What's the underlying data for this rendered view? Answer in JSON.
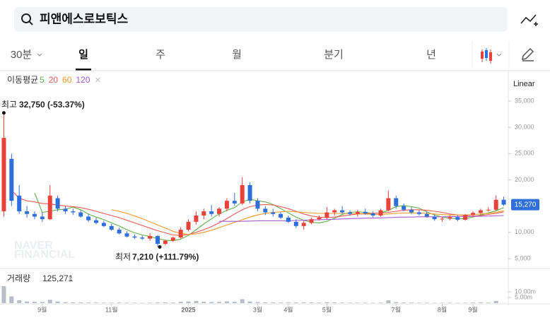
{
  "search": {
    "query": "피앤에스로보틱스"
  },
  "tabs": [
    "30분",
    "일",
    "주",
    "월",
    "분기",
    "년"
  ],
  "active_tab_index": 1,
  "chart_data": {
    "type": "candlestick",
    "scale_label": "Linear",
    "ma_title": "이동평균",
    "up_color": "#e8433a",
    "down_color": "#2f6fdc",
    "categories": [
      null,
      null,
      null,
      null,
      null,
      "9월",
      null,
      null,
      null,
      null,
      null,
      null,
      null,
      null,
      "11월",
      null,
      null,
      null,
      null,
      null,
      null,
      null,
      null,
      null,
      "2025",
      null,
      null,
      null,
      null,
      null,
      null,
      null,
      null,
      "3월",
      null,
      null,
      null,
      "4월",
      null,
      null,
      null,
      null,
      "5월",
      null,
      null,
      null,
      null,
      null,
      null,
      null,
      null,
      "7월",
      null,
      null,
      null,
      null,
      null,
      "8월",
      null,
      null,
      null,
      "9월",
      null,
      null,
      null,
      null
    ],
    "open": [
      14000,
      24000,
      17000,
      14000,
      13500,
      13000,
      12500,
      16500,
      14500,
      14000,
      13800,
      13000,
      12300,
      11800,
      11200,
      10500,
      9800,
      9200,
      9000,
      8800,
      9300,
      7800,
      8400,
      9000,
      10500,
      12000,
      13200,
      14000,
      13500,
      14500,
      16000,
      15500,
      19000,
      16000,
      14500,
      13800,
      13500,
      12800,
      12000,
      11200,
      11800,
      12500,
      12800,
      13800,
      14200,
      13800,
      13500,
      13900,
      13600,
      13200,
      14200,
      16500,
      15000,
      14300,
      13800,
      13500,
      13000,
      12500,
      12600,
      12900,
      12400,
      13300,
      13700,
      14200,
      14300,
      16200
    ],
    "high": [
      32750,
      25000,
      19000,
      15000,
      14000,
      13800,
      19000,
      17000,
      15000,
      14500,
      14200,
      13500,
      12800,
      12200,
      11600,
      10900,
      10200,
      9600,
      9400,
      9800,
      9500,
      8600,
      9200,
      11000,
      12500,
      14000,
      14500,
      15200,
      14800,
      16500,
      17500,
      20500,
      19500,
      16500,
      15000,
      14500,
      13800,
      13200,
      12500,
      12200,
      12800,
      13200,
      14800,
      14500,
      15000,
      14200,
      14300,
      14500,
      14000,
      14500,
      18000,
      17000,
      15500,
      14800,
      14200,
      14000,
      13400,
      13000,
      13200,
      13300,
      13500,
      14000,
      14500,
      14800,
      17000,
      16800
    ],
    "low": [
      13000,
      15000,
      13500,
      12800,
      12500,
      12000,
      12300,
      14000,
      13500,
      13300,
      12800,
      12000,
      11500,
      11000,
      10300,
      9600,
      9000,
      8700,
      8600,
      8400,
      7210,
      7500,
      8200,
      8800,
      10200,
      11500,
      12500,
      13000,
      13000,
      14000,
      15000,
      15200,
      15500,
      14000,
      13300,
      13000,
      12500,
      11800,
      10800,
      10500,
      11500,
      12200,
      12500,
      13200,
      13500,
      13200,
      13000,
      13300,
      12800,
      13000,
      14000,
      14500,
      14000,
      13500,
      13200,
      12800,
      12200,
      12000,
      12300,
      12100,
      12200,
      13000,
      13400,
      13900,
      14000,
      15000
    ],
    "close": [
      28000,
      16000,
      14000,
      13500,
      13000,
      12500,
      17000,
      14500,
      14000,
      13800,
      13000,
      12300,
      11800,
      11200,
      10500,
      9800,
      9200,
      9000,
      8800,
      9300,
      7800,
      8400,
      9000,
      10500,
      12000,
      13200,
      14000,
      13500,
      14500,
      16000,
      15500,
      19000,
      16000,
      14500,
      13800,
      13500,
      12800,
      12000,
      11200,
      11800,
      12500,
      12800,
      13800,
      14200,
      13800,
      13500,
      13900,
      13600,
      13200,
      14200,
      16500,
      15000,
      14300,
      13800,
      13500,
      13000,
      12500,
      12600,
      12900,
      12400,
      13300,
      13700,
      14200,
      14300,
      16200,
      15270
    ],
    "moving_averages": [
      {
        "name": "5",
        "color": "#5fb24a",
        "values": [
          null,
          null,
          null,
          null,
          17500,
          13800,
          14000,
          14300,
          14400,
          14800,
          14300,
          13500,
          12900,
          12400,
          11800,
          11200,
          10500,
          9900,
          9500,
          9200,
          8800,
          8500,
          8400,
          8700,
          9400,
          10500,
          11600,
          12600,
          13500,
          14200,
          14700,
          15800,
          16300,
          16000,
          15800,
          15300,
          14500,
          13700,
          12900,
          12300,
          11900,
          11800,
          12100,
          12700,
          13400,
          13800,
          13900,
          13800,
          13600,
          13700,
          14200,
          14900,
          15100,
          14900,
          14600,
          13900,
          13300,
          12900,
          12700,
          12600,
          12600,
          12900,
          13300,
          13700,
          14100,
          14700
        ]
      },
      {
        "name": "20",
        "color": "#ef5a52",
        "values": [
          null,
          18000,
          16500,
          16000,
          15800,
          15500,
          15400,
          15200,
          15000,
          14900,
          14700,
          14400,
          14000,
          13600,
          13200,
          12800,
          12300,
          11800,
          11300,
          10800,
          10300,
          9900,
          9500,
          9400,
          9600,
          10000,
          10500,
          11100,
          11800,
          12600,
          13500,
          14300,
          14900,
          15200,
          15300,
          15200,
          14900,
          14500,
          14000,
          13500,
          13100,
          12900,
          12800,
          12900,
          13100,
          13300,
          13500,
          13600,
          13600,
          13700,
          13800,
          14000,
          14200,
          14300,
          14300,
          14200,
          14000,
          13800,
          13500,
          13300,
          13200,
          13100,
          13200,
          13400,
          13600,
          13900
        ]
      },
      {
        "name": "60",
        "color": "#f39a2b",
        "values": [
          null,
          null,
          null,
          null,
          null,
          null,
          null,
          null,
          null,
          null,
          null,
          null,
          null,
          null,
          14300,
          14000,
          13600,
          13100,
          12600,
          12000,
          11400,
          10800,
          10200,
          9800,
          9600,
          9700,
          10000,
          10400,
          10900,
          11400,
          11900,
          12400,
          12900,
          13300,
          13600,
          13800,
          13900,
          14000,
          13900,
          13800,
          13700,
          13600,
          13600,
          13600,
          13600,
          13600,
          13500,
          13500,
          13400,
          13400,
          13500,
          13600,
          13700,
          13700,
          13700,
          13600,
          13500,
          13400,
          13300,
          13300,
          13300,
          13400,
          13500,
          13600,
          13800,
          14100
        ]
      },
      {
        "name": "120",
        "color": "#a65ed0",
        "values": [
          null,
          null,
          null,
          null,
          null,
          null,
          null,
          null,
          null,
          null,
          null,
          null,
          null,
          null,
          null,
          null,
          null,
          null,
          null,
          null,
          null,
          null,
          null,
          null,
          null,
          null,
          null,
          null,
          12100,
          12100,
          12100,
          12100,
          12150,
          12200,
          12200,
          12200,
          12200,
          12200,
          12250,
          12300,
          12350,
          12400,
          12450,
          12500,
          12550,
          12600,
          12650,
          12700,
          12700,
          12750,
          12800,
          12850,
          12900,
          12900,
          12950,
          12950,
          12950,
          12950,
          13000,
          13000,
          13000,
          13050,
          13050,
          13100,
          13150,
          13200
        ]
      }
    ],
    "ylim": [
      3100,
      40800
    ],
    "yticks": [
      {
        "value": 35000,
        "label": "35,000"
      },
      {
        "value": 30000,
        "label": "30,000"
      },
      {
        "value": 25000,
        "label": "25,000"
      },
      {
        "value": 20000,
        "label": "20,000"
      },
      {
        "value": 10000,
        "label": "10,000"
      },
      {
        "value": 5000,
        "label": "5,000"
      }
    ],
    "high_label": {
      "prefix": "최고",
      "text": "32,750 (-53.37%)"
    },
    "low_label": {
      "prefix": "최저",
      "text": "7,210 (+111.79%)"
    },
    "last_price_label": "15,270",
    "watermark": [
      "NAVER",
      "FINANCIAL"
    ],
    "volume": {
      "title": "거래량",
      "value_label": "125,271",
      "color": "#b9bec6",
      "values": [
        15000000,
        6000000,
        2500000,
        1500000,
        1200000,
        1000000,
        3000000,
        1500000,
        900000,
        700000,
        600000,
        500000,
        500000,
        400000,
        400000,
        450000,
        400000,
        350000,
        300000,
        400000,
        500000,
        600000,
        500000,
        1200000,
        1500000,
        2000000,
        1200000,
        1000000,
        1100000,
        1600000,
        1200000,
        3500000,
        1500000,
        900000,
        700000,
        600000,
        500000,
        500000,
        600000,
        700000,
        600000,
        500000,
        800000,
        600000,
        500000,
        400000,
        400000,
        400000,
        350000,
        500000,
        2500000,
        900000,
        600000,
        500000,
        400000,
        400000,
        350000,
        300000,
        350000,
        300000,
        400000,
        500000,
        600000,
        500000,
        2000000,
        125271
      ],
      "ylim": [
        0,
        30000000
      ],
      "yticks": [
        {
          "value": 10000000,
          "label": "10.00m"
        },
        {
          "value": 5000000,
          "label": "5.00m"
        }
      ]
    }
  }
}
